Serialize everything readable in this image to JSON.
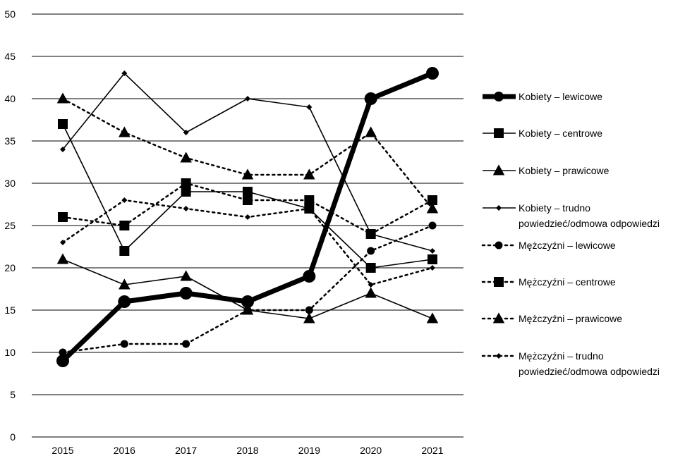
{
  "chart_data": {
    "type": "line",
    "title": "",
    "xlabel": "",
    "ylabel": "",
    "ylim": [
      0,
      50
    ],
    "y_ticks": [
      0,
      5,
      10,
      15,
      20,
      25,
      30,
      35,
      40,
      45,
      50
    ],
    "grid": true,
    "legend_position": "right",
    "categories": [
      "2015",
      "2016",
      "2017",
      "2018",
      "2019",
      "2020",
      "2021"
    ],
    "series": [
      {
        "name": "Kobiety – lewicowe",
        "values": [
          9,
          16,
          17,
          16,
          19,
          40,
          43
        ],
        "line": "solid",
        "width": "heavy",
        "marker": "circle"
      },
      {
        "name": "Kobiety – centrowe",
        "values": [
          37,
          22,
          29,
          29,
          27,
          20,
          21
        ],
        "line": "solid",
        "width": "normal",
        "marker": "square"
      },
      {
        "name": "Kobiety – prawicowe",
        "values": [
          21,
          18,
          19,
          15,
          14,
          17,
          14
        ],
        "line": "solid",
        "width": "normal",
        "marker": "triangle"
      },
      {
        "name": "Kobiety – trudno powiedzieć/odmowa odpowiedzi",
        "name_lines": [
          "Kobiety – trudno",
          "powiedzieć/odmowa odpowiedzi"
        ],
        "values": [
          34,
          43,
          36,
          40,
          39,
          24,
          22
        ],
        "line": "solid",
        "width": "normal",
        "marker": "diamond"
      },
      {
        "name": "Mężczyźni – lewicowe",
        "values": [
          10,
          11,
          11,
          15,
          15,
          22,
          25
        ],
        "line": "dotted",
        "width": "normal",
        "marker": "circle"
      },
      {
        "name": "Mężczyźni – centrowe",
        "values": [
          26,
          25,
          30,
          28,
          28,
          24,
          28
        ],
        "line": "dotted",
        "width": "normal",
        "marker": "square"
      },
      {
        "name": "Mężczyźni – prawicowe",
        "values": [
          40,
          36,
          33,
          31,
          31,
          36,
          27
        ],
        "line": "dotted",
        "width": "normal",
        "marker": "triangle"
      },
      {
        "name": "Mężczyźni – trudno powiedzieć/odmowa odpowiedzi",
        "name_lines": [
          "Mężczyźni – trudno",
          "powiedzieć/odmowa odpowiedzi"
        ],
        "values": [
          23,
          28,
          27,
          26,
          27,
          18,
          20
        ],
        "line": "dotted",
        "width": "normal",
        "marker": "diamond"
      }
    ]
  }
}
